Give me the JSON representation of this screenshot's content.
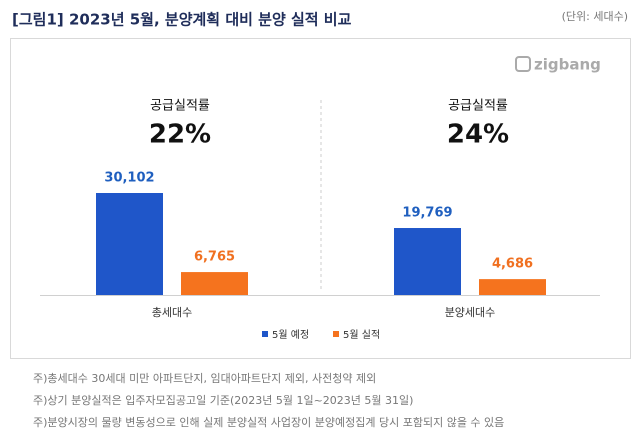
{
  "chart_data": {
    "type": "bar",
    "title": "[그림1] 2023년 5월, 분양계획 대비 분양 실적 비교",
    "unit": "(단위: 세대수)",
    "logo": "zigbang",
    "categories": [
      "총세대수",
      "분양세대수"
    ],
    "annotations": [
      {
        "label": "공급실적률",
        "value": "22%"
      },
      {
        "label": "공급실적률",
        "value": "24%"
      }
    ],
    "series": [
      {
        "name": "5월 예정",
        "color": "#1f56c9",
        "label_color": "#1f5fbf",
        "values": [
          30102,
          19769
        ],
        "value_labels": [
          "30,102",
          "19,769"
        ]
      },
      {
        "name": "5월 실적",
        "color": "#f5731e",
        "label_color": "#f07020",
        "values": [
          6765,
          4686
        ],
        "value_labels": [
          "6,765",
          "4,686"
        ]
      }
    ],
    "notes": [
      "주)총세대수 30세대 미만 아파트단지, 임대아파트단지 제외, 사전청약 제외",
      "주)상기 분양실적은 입주자모집공고일 기준(2023년 5월 1일~2023년 5월 31일)",
      "주)분양시장의 물량 변동성으로 인해 실제 분양실적 사업장이 분양예정집계 당시 포함되지 않을 수 있음"
    ]
  }
}
